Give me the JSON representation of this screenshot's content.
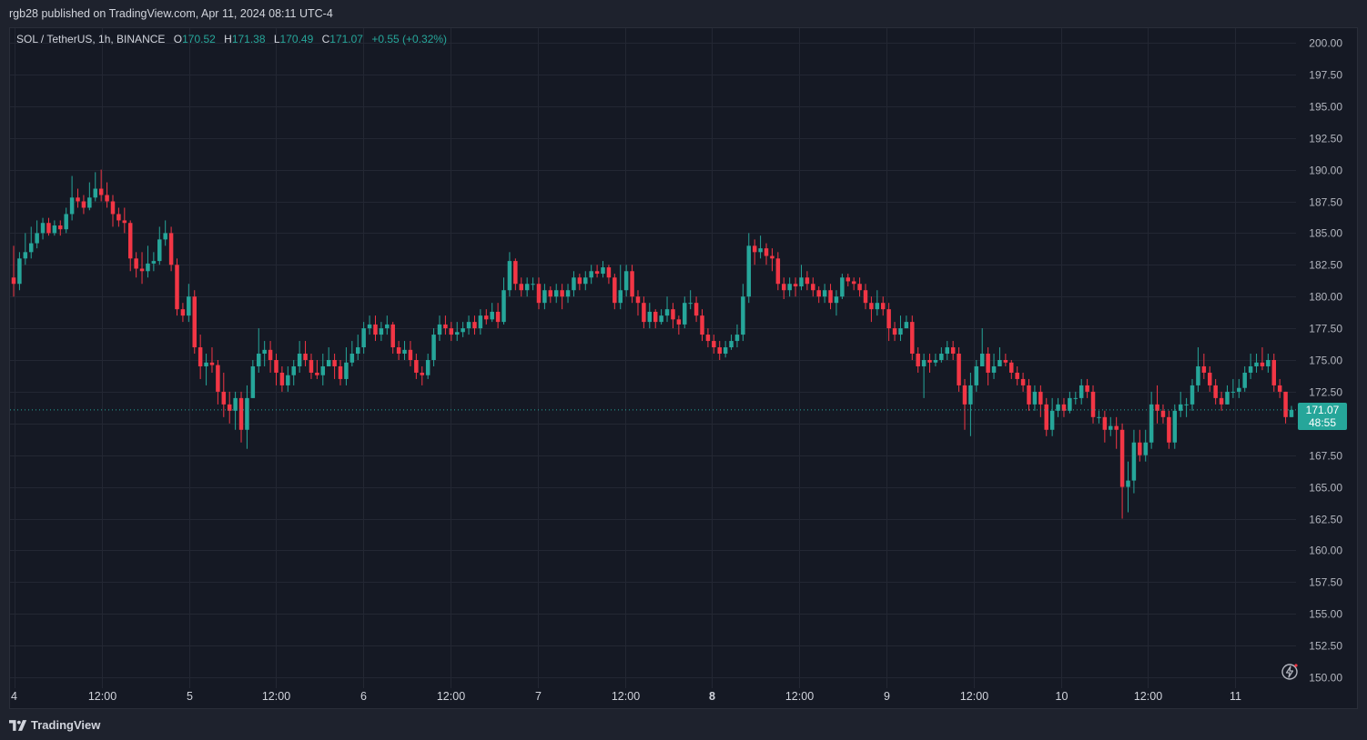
{
  "header": {
    "published_text": "rgb28 published on TradingView.com, Apr 11, 2024 08:11 UTC-4"
  },
  "legend": {
    "symbol": "SOL / TetherUS, 1h, BINANCE",
    "open_label": "O",
    "open_value": "170.52",
    "high_label": "H",
    "high_value": "171.38",
    "low_label": "L",
    "low_value": "170.49",
    "close_label": "C",
    "close_value": "171.07",
    "change": "+0.55 (+0.32%)"
  },
  "price_tag": {
    "price": "171.07",
    "countdown": "48:55"
  },
  "footer": {
    "brand": "TradingView"
  },
  "icons": {
    "brand_logo": "tradingview-logo-icon",
    "quick_action": "lightning-circle-icon"
  },
  "colors": {
    "up": "#26a69a",
    "down": "#f23645",
    "background": "#151924",
    "grid": "#232733",
    "text": "#d1d4dc"
  },
  "chart_data": {
    "type": "candlestick",
    "symbol": "SOL / TetherUS",
    "interval": "1h",
    "exchange": "BINANCE",
    "ylim": [
      149.5,
      201.5
    ],
    "y_ticks": [
      "200.00",
      "197.50",
      "195.00",
      "192.50",
      "190.00",
      "187.50",
      "185.00",
      "182.50",
      "180.00",
      "177.50",
      "175.00",
      "172.50",
      "170.00",
      "167.50",
      "165.00",
      "162.50",
      "160.00",
      "157.50",
      "155.00",
      "152.50",
      "150.00"
    ],
    "x_ticks": [
      "4",
      "12:00",
      "5",
      "12:00",
      "6",
      "12:00",
      "7",
      "12:00",
      "8",
      "12:00",
      "9",
      "12:00",
      "10",
      "12:00",
      "11"
    ],
    "x_tick_bold": [
      false,
      false,
      false,
      false,
      false,
      false,
      false,
      false,
      true,
      false,
      false,
      false,
      false,
      false,
      false
    ],
    "last_price": 171.07,
    "candles": [
      [
        181.5,
        181.0,
        184.0,
        180.0
      ],
      [
        181.0,
        183.0,
        183.5,
        180.5
      ],
      [
        183.0,
        183.5,
        185.0,
        182.5
      ],
      [
        183.5,
        184.2,
        185.5,
        183.0
      ],
      [
        184.2,
        185.0,
        186.0,
        183.8
      ],
      [
        185.0,
        185.8,
        186.2,
        184.5
      ],
      [
        185.8,
        185.0,
        186.2,
        184.8
      ],
      [
        185.0,
        185.6,
        186.0,
        184.8
      ],
      [
        185.6,
        185.3,
        186.0,
        184.8
      ],
      [
        185.3,
        186.5,
        187.0,
        185.0
      ],
      [
        186.5,
        187.8,
        189.5,
        186.0
      ],
      [
        187.8,
        187.5,
        188.5,
        187.0
      ],
      [
        187.5,
        187.0,
        188.0,
        186.5
      ],
      [
        187.0,
        187.8,
        189.0,
        186.8
      ],
      [
        187.8,
        188.5,
        189.8,
        187.5
      ],
      [
        188.5,
        188.0,
        190.0,
        187.5
      ],
      [
        188.0,
        187.5,
        189.0,
        187.0
      ],
      [
        187.5,
        186.5,
        188.0,
        185.5
      ],
      [
        186.5,
        186.0,
        187.0,
        185.5
      ],
      [
        186.0,
        185.8,
        187.0,
        185.0
      ],
      [
        185.8,
        183.0,
        186.0,
        182.0
      ],
      [
        183.0,
        182.2,
        183.5,
        181.5
      ],
      [
        182.2,
        182.0,
        183.5,
        181.0
      ],
      [
        182.0,
        182.6,
        184.0,
        181.5
      ],
      [
        182.6,
        182.8,
        183.5,
        182.0
      ],
      [
        182.8,
        184.5,
        185.5,
        182.5
      ],
      [
        184.5,
        185.0,
        186.0,
        184.0
      ],
      [
        185.0,
        182.5,
        185.5,
        182.0
      ],
      [
        182.5,
        179.0,
        183.0,
        178.5
      ],
      [
        179.0,
        178.5,
        179.5,
        178.0
      ],
      [
        178.5,
        180.0,
        181.0,
        178.0
      ],
      [
        180.0,
        176.0,
        180.5,
        175.5
      ],
      [
        176.0,
        174.5,
        177.0,
        173.5
      ],
      [
        174.5,
        174.8,
        175.5,
        173.0
      ],
      [
        174.8,
        174.6,
        176.0,
        174.0
      ],
      [
        174.6,
        172.5,
        175.0,
        171.5
      ],
      [
        172.5,
        171.5,
        174.0,
        170.5
      ],
      [
        171.5,
        171.0,
        172.5,
        170.0
      ],
      [
        171.0,
        172.0,
        172.5,
        169.5
      ],
      [
        172.0,
        169.5,
        172.5,
        168.5
      ],
      [
        169.5,
        172.0,
        173.0,
        168.0
      ],
      [
        172.0,
        174.5,
        175.0,
        172.0
      ],
      [
        174.5,
        175.5,
        177.5,
        174.0
      ],
      [
        175.5,
        175.8,
        176.5,
        174.5
      ],
      [
        175.8,
        175.0,
        176.5,
        174.0
      ],
      [
        175.0,
        174.0,
        175.5,
        173.0
      ],
      [
        174.0,
        173.0,
        174.5,
        172.5
      ],
      [
        173.0,
        173.8,
        174.5,
        172.5
      ],
      [
        173.8,
        174.5,
        175.0,
        173.0
      ],
      [
        174.5,
        175.5,
        176.5,
        174.0
      ],
      [
        175.5,
        175.0,
        176.5,
        174.5
      ],
      [
        175.0,
        174.0,
        175.5,
        173.5
      ],
      [
        174.0,
        173.8,
        175.0,
        173.5
      ],
      [
        173.8,
        174.5,
        175.5,
        173.0
      ],
      [
        174.5,
        175.0,
        176.0,
        174.5
      ],
      [
        175.0,
        174.5,
        175.5,
        173.5
      ],
      [
        174.5,
        173.5,
        175.0,
        173.0
      ],
      [
        173.5,
        174.8,
        176.0,
        173.0
      ],
      [
        174.8,
        175.5,
        176.5,
        174.5
      ],
      [
        175.5,
        176.0,
        177.0,
        175.0
      ],
      [
        176.0,
        177.5,
        178.0,
        175.5
      ],
      [
        177.5,
        177.8,
        178.5,
        177.0
      ],
      [
        177.8,
        177.0,
        178.5,
        176.5
      ],
      [
        177.0,
        177.5,
        178.0,
        176.5
      ],
      [
        177.5,
        177.8,
        178.5,
        177.0
      ],
      [
        177.8,
        176.0,
        178.0,
        175.5
      ],
      [
        176.0,
        175.5,
        176.5,
        175.0
      ],
      [
        175.5,
        175.8,
        176.5,
        175.0
      ],
      [
        175.8,
        175.0,
        176.5,
        174.5
      ],
      [
        175.0,
        174.0,
        175.5,
        173.5
      ],
      [
        174.0,
        173.8,
        174.5,
        173.0
      ],
      [
        173.8,
        175.0,
        175.5,
        173.5
      ],
      [
        175.0,
        177.0,
        177.5,
        174.5
      ],
      [
        177.0,
        177.8,
        178.5,
        176.5
      ],
      [
        177.8,
        177.5,
        178.5,
        177.0
      ],
      [
        177.5,
        177.0,
        178.0,
        176.5
      ],
      [
        177.0,
        177.2,
        178.0,
        176.5
      ],
      [
        177.2,
        177.5,
        178.0,
        176.8
      ],
      [
        177.5,
        178.0,
        178.5,
        177.0
      ],
      [
        178.0,
        177.5,
        178.5,
        177.0
      ],
      [
        177.5,
        178.5,
        179.0,
        177.0
      ],
      [
        178.5,
        178.2,
        179.0,
        177.8
      ],
      [
        178.2,
        178.8,
        179.5,
        178.0
      ],
      [
        178.8,
        178.0,
        179.5,
        177.5
      ],
      [
        178.0,
        180.5,
        181.5,
        177.8
      ],
      [
        180.5,
        182.8,
        183.5,
        180.0
      ],
      [
        182.8,
        181.0,
        183.0,
        180.5
      ],
      [
        181.0,
        180.5,
        181.5,
        180.0
      ],
      [
        180.5,
        181.0,
        181.5,
        180.0
      ],
      [
        181.0,
        181.0,
        181.5,
        180.5
      ],
      [
        181.0,
        179.5,
        181.5,
        179.0
      ],
      [
        179.5,
        180.5,
        181.0,
        179.0
      ],
      [
        180.5,
        180.0,
        180.8,
        179.5
      ],
      [
        180.0,
        180.5,
        181.0,
        179.5
      ],
      [
        180.5,
        180.0,
        181.0,
        179.0
      ],
      [
        180.0,
        180.5,
        181.0,
        179.5
      ],
      [
        180.5,
        181.5,
        182.0,
        180.0
      ],
      [
        181.5,
        181.0,
        181.8,
        180.5
      ],
      [
        181.0,
        181.5,
        182.0,
        180.5
      ],
      [
        181.5,
        182.0,
        182.5,
        181.0
      ],
      [
        182.0,
        181.8,
        182.5,
        181.5
      ],
      [
        181.8,
        182.3,
        182.8,
        181.5
      ],
      [
        182.3,
        181.5,
        182.5,
        181.0
      ],
      [
        181.5,
        179.5,
        181.8,
        179.0
      ],
      [
        179.5,
        180.5,
        182.5,
        179.0
      ],
      [
        180.5,
        182.0,
        182.5,
        180.0
      ],
      [
        182.0,
        180.0,
        182.5,
        179.5
      ],
      [
        180.0,
        179.5,
        180.5,
        178.5
      ],
      [
        179.5,
        178.0,
        180.0,
        177.5
      ],
      [
        178.0,
        178.8,
        179.5,
        177.5
      ],
      [
        178.8,
        178.0,
        179.0,
        177.5
      ],
      [
        178.0,
        178.5,
        179.0,
        177.8
      ],
      [
        178.5,
        179.0,
        180.0,
        178.0
      ],
      [
        179.0,
        178.2,
        179.5,
        177.5
      ],
      [
        178.2,
        177.8,
        178.5,
        177.0
      ],
      [
        177.8,
        179.5,
        180.0,
        177.5
      ],
      [
        179.5,
        179.5,
        180.5,
        179.0
      ],
      [
        179.5,
        178.5,
        180.0,
        178.0
      ],
      [
        178.5,
        177.0,
        179.0,
        176.5
      ],
      [
        177.0,
        176.5,
        177.5,
        176.0
      ],
      [
        176.5,
        176.0,
        177.0,
        175.5
      ],
      [
        176.0,
        175.5,
        176.5,
        175.0
      ],
      [
        175.5,
        176.0,
        176.5,
        175.2
      ],
      [
        176.0,
        176.5,
        177.0,
        175.8
      ],
      [
        176.5,
        177.0,
        177.8,
        176.0
      ],
      [
        177.0,
        180.0,
        181.0,
        176.5
      ],
      [
        180.0,
        184.0,
        185.0,
        179.5
      ],
      [
        184.0,
        183.5,
        184.5,
        182.5
      ],
      [
        183.5,
        183.8,
        184.8,
        183.0
      ],
      [
        183.8,
        183.2,
        184.2,
        182.5
      ],
      [
        183.2,
        183.0,
        183.8,
        182.0
      ],
      [
        183.0,
        181.0,
        183.5,
        180.5
      ],
      [
        181.0,
        180.5,
        181.5,
        179.8
      ],
      [
        180.5,
        181.0,
        181.5,
        180.0
      ],
      [
        181.0,
        180.8,
        181.5,
        180.0
      ],
      [
        180.8,
        181.5,
        182.5,
        180.5
      ],
      [
        181.5,
        181.0,
        182.0,
        180.5
      ],
      [
        181.0,
        180.5,
        181.5,
        180.0
      ],
      [
        180.5,
        180.0,
        180.8,
        179.5
      ],
      [
        180.0,
        180.5,
        181.0,
        179.5
      ],
      [
        180.5,
        179.5,
        181.0,
        179.0
      ],
      [
        179.5,
        180.0,
        180.5,
        178.5
      ],
      [
        180.0,
        181.5,
        181.8,
        179.8
      ],
      [
        181.5,
        181.2,
        181.8,
        180.8
      ],
      [
        181.2,
        181.0,
        181.5,
        180.5
      ],
      [
        181.0,
        180.5,
        181.5,
        180.0
      ],
      [
        180.5,
        179.5,
        181.0,
        179.0
      ],
      [
        179.5,
        179.0,
        180.0,
        178.0
      ],
      [
        179.0,
        179.5,
        180.5,
        178.5
      ],
      [
        179.5,
        179.0,
        180.0,
        178.5
      ],
      [
        179.0,
        177.5,
        179.5,
        176.5
      ],
      [
        177.5,
        177.0,
        178.0,
        176.5
      ],
      [
        177.0,
        177.5,
        178.5,
        176.5
      ],
      [
        177.5,
        178.0,
        178.5,
        177.5
      ],
      [
        178.0,
        175.5,
        178.5,
        175.0
      ],
      [
        175.5,
        174.5,
        176.0,
        174.0
      ],
      [
        174.5,
        175.0,
        175.5,
        172.0
      ],
      [
        175.0,
        174.8,
        175.5,
        174.0
      ],
      [
        174.8,
        175.0,
        175.5,
        174.5
      ],
      [
        175.0,
        175.5,
        176.0,
        174.8
      ],
      [
        175.5,
        176.0,
        176.5,
        175.0
      ],
      [
        176.0,
        175.5,
        176.5,
        175.0
      ],
      [
        175.5,
        173.0,
        176.0,
        172.5
      ],
      [
        173.0,
        171.5,
        173.5,
        169.5
      ],
      [
        171.5,
        173.0,
        174.0,
        169.0
      ],
      [
        173.0,
        174.5,
        175.0,
        172.5
      ],
      [
        174.5,
        175.5,
        177.5,
        174.5
      ],
      [
        175.5,
        174.0,
        176.0,
        173.0
      ],
      [
        174.0,
        174.5,
        175.5,
        173.5
      ],
      [
        174.5,
        175.0,
        176.0,
        174.5
      ],
      [
        175.0,
        174.8,
        175.5,
        174.5
      ],
      [
        174.8,
        174.0,
        175.0,
        173.5
      ],
      [
        174.0,
        173.5,
        174.5,
        173.0
      ],
      [
        173.5,
        173.0,
        174.0,
        172.5
      ],
      [
        173.0,
        171.5,
        173.5,
        171.0
      ],
      [
        171.5,
        172.5,
        173.0,
        171.0
      ],
      [
        172.5,
        171.5,
        173.0,
        170.5
      ],
      [
        171.5,
        169.5,
        172.0,
        169.0
      ],
      [
        169.5,
        171.0,
        172.0,
        169.0
      ],
      [
        171.0,
        171.5,
        172.0,
        170.5
      ],
      [
        171.5,
        171.0,
        172.0,
        170.5
      ],
      [
        171.0,
        172.0,
        172.5,
        170.8
      ],
      [
        172.0,
        172.0,
        172.5,
        171.5
      ],
      [
        172.0,
        173.0,
        173.5,
        171.5
      ],
      [
        173.0,
        172.5,
        173.5,
        172.0
      ],
      [
        172.5,
        170.5,
        173.0,
        170.0
      ],
      [
        170.5,
        170.5,
        171.0,
        170.0
      ],
      [
        170.5,
        169.5,
        171.0,
        168.5
      ],
      [
        169.5,
        169.8,
        170.5,
        169.0
      ],
      [
        169.8,
        169.5,
        170.5,
        168.0
      ],
      [
        169.5,
        165.0,
        170.0,
        162.5
      ],
      [
        165.0,
        165.5,
        167.0,
        163.0
      ],
      [
        165.5,
        168.5,
        169.5,
        164.5
      ],
      [
        168.5,
        167.5,
        169.5,
        167.0
      ],
      [
        167.5,
        168.5,
        169.5,
        167.0
      ],
      [
        168.5,
        171.5,
        172.5,
        168.0
      ],
      [
        171.5,
        171.0,
        173.0,
        170.0
      ],
      [
        171.0,
        170.5,
        171.5,
        170.0
      ],
      [
        170.5,
        168.5,
        171.0,
        168.0
      ],
      [
        168.5,
        171.0,
        171.5,
        168.0
      ],
      [
        171.0,
        171.5,
        172.5,
        170.5
      ],
      [
        171.5,
        171.5,
        172.0,
        170.5
      ],
      [
        171.5,
        173.0,
        173.5,
        171.0
      ],
      [
        173.0,
        174.5,
        176.0,
        172.5
      ],
      [
        174.5,
        174.0,
        175.5,
        173.5
      ],
      [
        174.0,
        173.0,
        174.5,
        172.5
      ],
      [
        173.0,
        172.0,
        173.5,
        171.5
      ],
      [
        172.0,
        171.5,
        172.5,
        171.0
      ],
      [
        171.5,
        172.5,
        173.0,
        171.5
      ],
      [
        172.5,
        172.5,
        173.5,
        172.0
      ],
      [
        172.5,
        172.8,
        173.5,
        172.0
      ],
      [
        172.8,
        174.0,
        174.5,
        172.5
      ],
      [
        174.0,
        174.5,
        175.5,
        173.5
      ],
      [
        174.5,
        174.8,
        175.5,
        174.0
      ],
      [
        174.8,
        174.5,
        176.0,
        174.2
      ],
      [
        174.5,
        175.0,
        175.5,
        174.0
      ],
      [
        175.0,
        173.0,
        175.5,
        172.5
      ],
      [
        173.0,
        172.5,
        173.5,
        172.0
      ],
      [
        172.5,
        170.5,
        172.5,
        170.0
      ],
      [
        170.5,
        171.07,
        171.38,
        170.49
      ]
    ]
  }
}
